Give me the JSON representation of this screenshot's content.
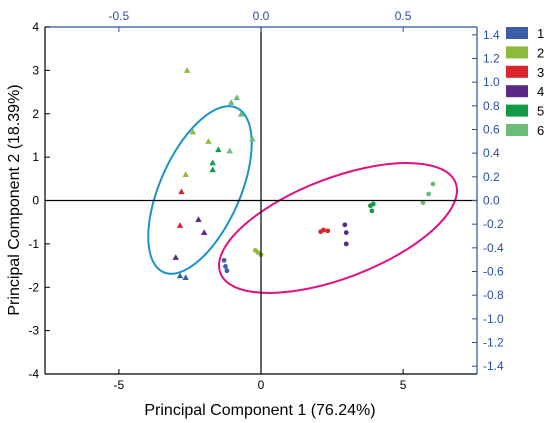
{
  "chart_data": {
    "type": "scatter",
    "xlabel": "Principal Component 1 (76.24%)",
    "ylabel": "Principal Component 2 (18.39%)",
    "xlim": [
      -7.6,
      7.6
    ],
    "ylim": [
      -4,
      4
    ],
    "x_ticks": [
      "-5",
      "0",
      "5"
    ],
    "y_ticks": [
      "-4",
      "-3",
      "-2",
      "-1",
      "0",
      "1",
      "2",
      "3",
      "4"
    ],
    "top_axis": {
      "lim": [
        -0.76,
        0.76
      ],
      "ticks": [
        "-0.5",
        "0.0",
        "0.5"
      ]
    },
    "right_axis": {
      "lim": [
        -1.466,
        1.466
      ],
      "ticks": [
        "-1.4",
        "-1.2",
        "-1.0",
        "-0.8",
        "-0.6",
        "-0.4",
        "-0.2",
        "0.0",
        "0.2",
        "0.4",
        "0.6",
        "0.8",
        "1.0",
        "1.2",
        "1.4"
      ]
    },
    "grid": false,
    "legend_position": "outside-right",
    "score_marker": "circle",
    "loading_marker": "triangle",
    "series": [
      {
        "name": "1",
        "color": "#3b5ea6",
        "scores": [
          [
            -1.3,
            -1.38
          ],
          [
            -1.25,
            -1.52
          ],
          [
            -1.2,
            -1.62
          ]
        ],
        "loadings": [
          [
            -0.285,
            -0.635
          ],
          [
            -0.265,
            -0.65
          ]
        ]
      },
      {
        "name": "2",
        "color": "#8dbb3c",
        "scores": [
          [
            -0.2,
            -1.15
          ],
          [
            -0.1,
            -1.2
          ],
          [
            0.0,
            -1.25
          ]
        ],
        "loadings": [
          [
            -0.26,
            1.1
          ],
          [
            -0.24,
            0.58
          ],
          [
            -0.265,
            0.22
          ],
          [
            -0.185,
            0.5
          ]
        ]
      },
      {
        "name": "3",
        "color": "#d9262e",
        "scores": [
          [
            2.1,
            -0.72
          ],
          [
            2.2,
            -0.68
          ],
          [
            2.35,
            -0.7
          ]
        ],
        "loadings": [
          [
            -0.285,
            -0.21
          ],
          [
            -0.28,
            0.075
          ]
        ]
      },
      {
        "name": "4",
        "color": "#5b2a86",
        "scores": [
          [
            2.95,
            -0.56
          ],
          [
            3.0,
            -0.74
          ],
          [
            3.0,
            -1.0
          ]
        ],
        "loadings": [
          [
            -0.22,
            -0.16
          ],
          [
            -0.2,
            -0.27
          ],
          [
            -0.3,
            -0.48
          ]
        ]
      },
      {
        "name": "5",
        "color": "#119a48",
        "scores": [
          [
            3.85,
            -0.12
          ],
          [
            3.95,
            -0.08
          ],
          [
            3.9,
            -0.24
          ]
        ],
        "loadings": [
          [
            -0.17,
            0.32
          ],
          [
            -0.15,
            0.43
          ],
          [
            -0.17,
            0.26
          ]
        ]
      },
      {
        "name": "6",
        "color": "#6cbc78",
        "scores": [
          [
            5.7,
            -0.05
          ],
          [
            5.9,
            0.15
          ],
          [
            6.05,
            0.38
          ]
        ],
        "loadings": [
          [
            -0.105,
            0.83
          ],
          [
            -0.085,
            0.87
          ],
          [
            -0.03,
            0.52
          ],
          [
            -0.11,
            0.42
          ],
          [
            -0.07,
            0.73
          ]
        ]
      }
    ]
  }
}
